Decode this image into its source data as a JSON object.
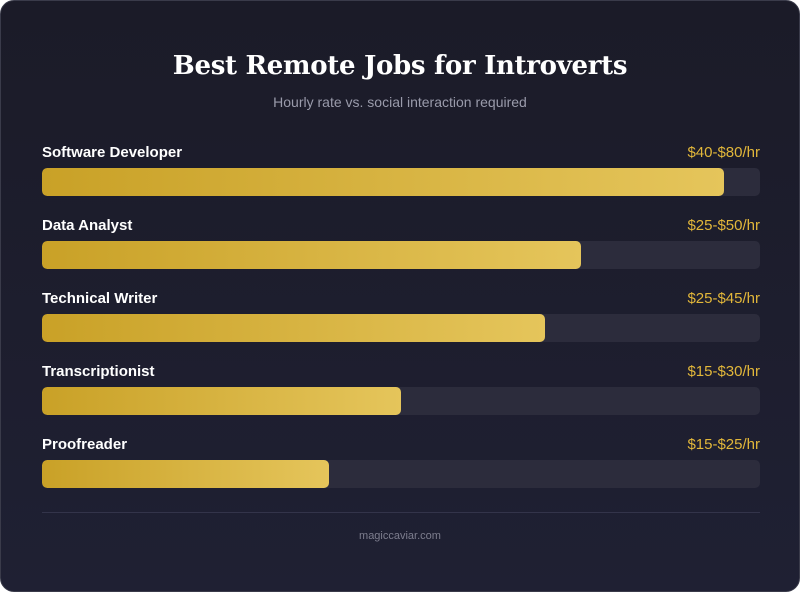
{
  "header": {
    "title": "Best Remote Jobs for Introverts",
    "subtitle": "Hourly rate vs. social interaction required"
  },
  "footer": {
    "source": "magiccaviar.com"
  },
  "colors": {
    "bar_start": "#c9a127",
    "bar_end": "#e5c55b",
    "value_text": "#e2b73a",
    "track": "#2c2c3c",
    "background": "#1d1d2c"
  },
  "chart_data": {
    "type": "bar",
    "orientation": "horizontal",
    "title": "Best Remote Jobs for Introverts",
    "subtitle": "Hourly rate vs. social interaction required",
    "categories": [
      "Software Developer",
      "Data Analyst",
      "Technical Writer",
      "Transcriptionist",
      "Proofreader"
    ],
    "value_labels": [
      "$40-$80/hr",
      "$25-$50/hr",
      "$25-$45/hr",
      "$15-$30/hr",
      "$15-$25/hr"
    ],
    "values": [
      95,
      75,
      70,
      50,
      40
    ],
    "xlim": [
      0,
      100
    ],
    "grid": false,
    "legend": "none"
  }
}
